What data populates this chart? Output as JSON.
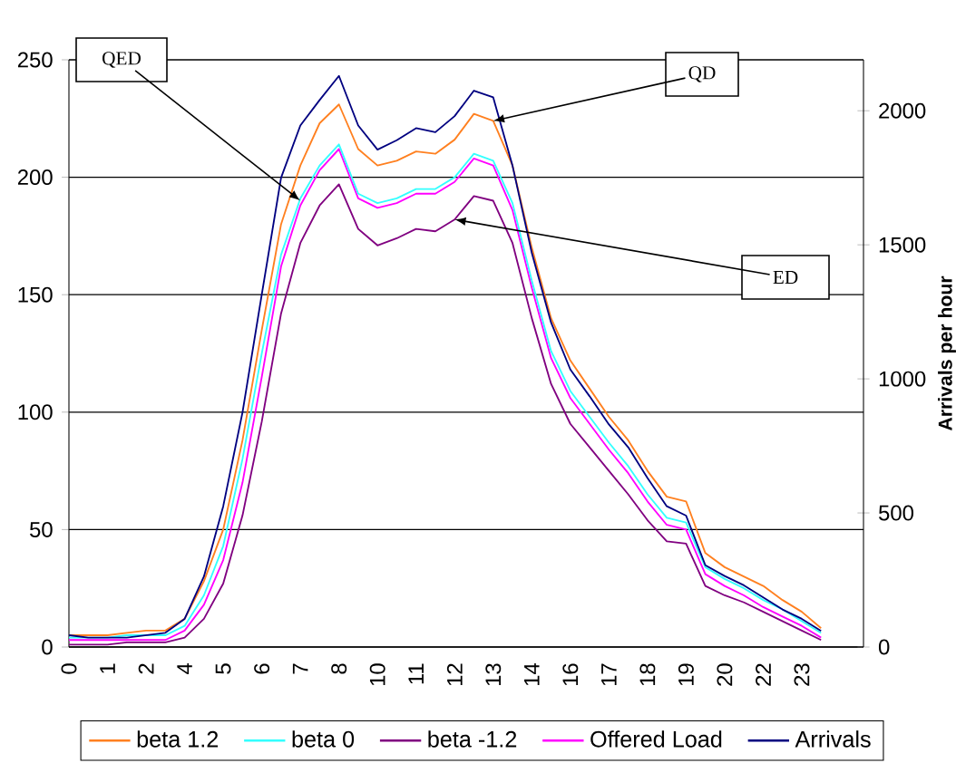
{
  "chart_data": {
    "type": "line",
    "categories": [
      "0",
      null,
      "1",
      null,
      "2",
      null,
      "4",
      null,
      "5",
      null,
      "6",
      null,
      "7",
      null,
      "8",
      null,
      "10",
      null,
      "11",
      null,
      "12",
      null,
      "13",
      null,
      "14",
      null,
      "16",
      null,
      "17",
      null,
      "18",
      null,
      "19",
      null,
      "20",
      null,
      "22",
      null,
      "23",
      null
    ],
    "series": [
      {
        "name": "beta 1.2",
        "color": "#ff8020",
        "values": [
          5,
          5,
          5,
          6,
          7,
          7,
          12,
          28,
          50,
          88,
          135,
          180,
          205,
          223,
          231,
          212,
          205,
          207,
          211,
          210,
          216,
          227,
          224,
          205,
          170,
          140,
          122,
          110,
          98,
          88,
          75,
          64,
          62,
          40,
          34,
          30,
          26,
          20,
          15,
          8
        ]
      },
      {
        "name": "beta 0",
        "color": "#33ffff",
        "values": [
          4,
          4,
          4,
          5,
          5,
          5,
          9,
          22,
          43,
          80,
          125,
          167,
          191,
          205,
          214,
          193,
          189,
          191,
          195,
          195,
          200,
          210,
          207,
          189,
          156,
          126,
          109,
          98,
          87,
          77,
          65,
          55,
          53,
          34,
          29,
          25,
          20,
          16,
          11,
          6
        ]
      },
      {
        "name": "beta -1.2",
        "color": "#800080",
        "values": [
          1,
          1,
          1,
          2,
          2,
          2,
          4,
          12,
          27,
          56,
          96,
          142,
          172,
          188,
          197,
          178,
          171,
          174,
          178,
          177,
          182,
          192,
          190,
          172,
          140,
          112,
          95,
          85,
          75,
          65,
          54,
          45,
          44,
          26,
          22,
          19,
          15,
          11,
          7,
          3
        ]
      },
      {
        "name": "Offered Load",
        "color": "#ff00ff",
        "values": [
          3,
          3,
          3,
          3,
          3,
          3,
          7,
          18,
          37,
          70,
          115,
          162,
          188,
          203,
          212,
          191,
          187,
          189,
          193,
          193,
          198,
          208,
          205,
          186,
          153,
          123,
          106,
          95,
          84,
          74,
          62,
          52,
          50,
          31,
          26,
          22,
          17,
          13,
          9,
          4
        ]
      },
      {
        "name": "Arrivals",
        "color": "#000080",
        "axis": "y2",
        "values": [
          44,
          35,
          35,
          35,
          44,
          53,
          105,
          263,
          525,
          875,
          1315,
          1750,
          1945,
          2040,
          2130,
          1945,
          1855,
          1890,
          1935,
          1920,
          1980,
          2075,
          2050,
          1795,
          1470,
          1210,
          1035,
          935,
          830,
          745,
          630,
          525,
          490,
          305,
          265,
          230,
          185,
          140,
          105,
          60
        ]
      }
    ],
    "ylim": [
      0,
      250
    ],
    "yticks": [
      0,
      50,
      100,
      150,
      200,
      250
    ],
    "y2lim": [
      0,
      2190
    ],
    "y2ticks": [
      0,
      500,
      1000,
      1500,
      2000
    ],
    "y2label": "Arrivals per hour",
    "grid": "y",
    "legend": "bottom",
    "marker": "none",
    "line_style": "solid",
    "annotations": [
      {
        "text": "QED",
        "x": "7",
        "y": 190
      },
      {
        "text": "QD",
        "x": "13",
        "y": 224
      },
      {
        "text": "ED",
        "x": "12",
        "y": 182
      }
    ]
  }
}
